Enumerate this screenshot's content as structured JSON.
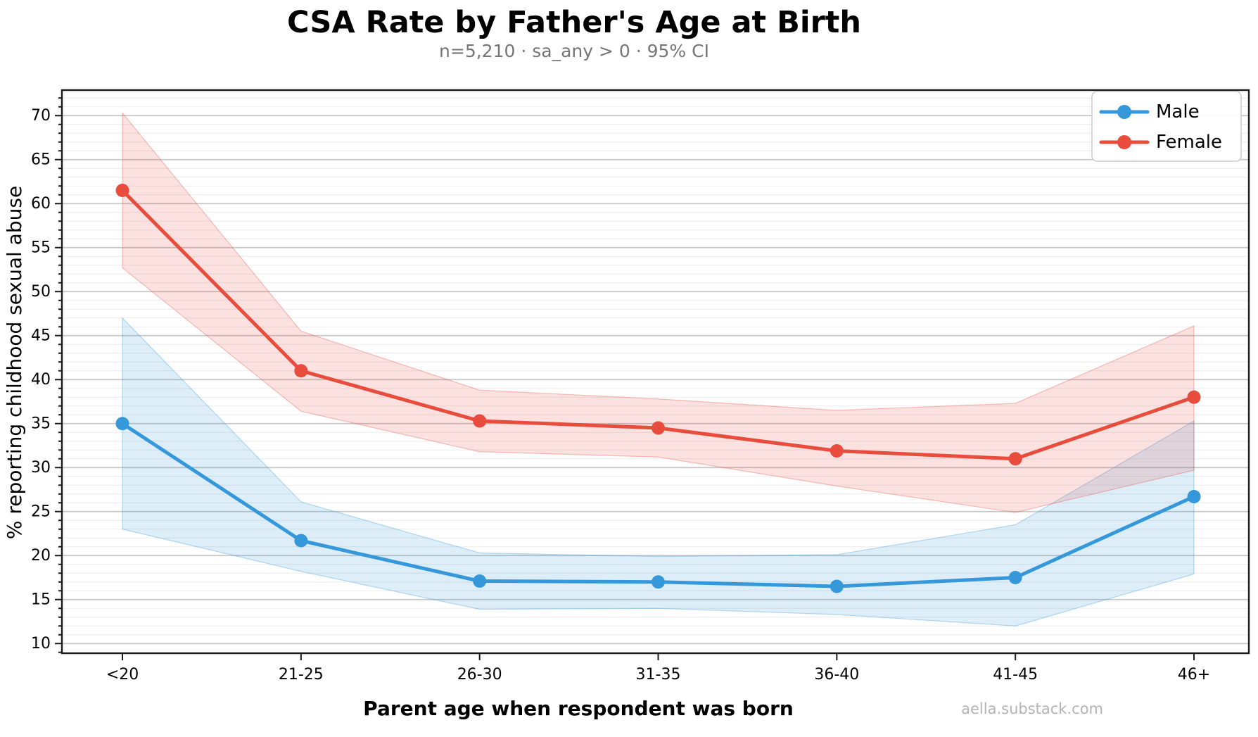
{
  "chart_data": {
    "type": "line",
    "title": "CSA Rate by Father's Age at Birth",
    "subtitle": "n=5,210 · sa_any > 0 · 95% CI",
    "xlabel": "Parent age when respondent was born",
    "ylabel": "% reporting childhood sexual abuse",
    "categories": [
      "<20",
      "21-25",
      "26-30",
      "31-35",
      "36-40",
      "41-45",
      "46+"
    ],
    "series": [
      {
        "name": "Male",
        "color": "#3498db",
        "values": [
          35.0,
          21.7,
          17.1,
          17.0,
          16.5,
          17.5,
          26.7
        ],
        "ci_low": [
          23.0,
          18.2,
          13.9,
          14.0,
          13.3,
          12.0,
          17.9
        ],
        "ci_high": [
          47.0,
          26.1,
          20.3,
          19.9,
          20.1,
          23.5,
          35.3
        ]
      },
      {
        "name": "Female",
        "color": "#e74c3c",
        "values": [
          61.5,
          41.0,
          35.3,
          34.5,
          31.9,
          31.0,
          38.0
        ],
        "ci_low": [
          52.7,
          36.4,
          31.8,
          31.2,
          27.9,
          24.9,
          29.7
        ],
        "ci_high": [
          70.3,
          45.5,
          38.8,
          37.8,
          36.5,
          37.3,
          46.1
        ]
      }
    ],
    "ci_label": "95% CI",
    "sample_size": "n=5,210",
    "yticks": [
      10,
      15,
      20,
      25,
      30,
      35,
      40,
      45,
      50,
      55,
      60,
      65,
      70
    ],
    "ylim": [
      8.9,
      72.9
    ],
    "grid": "horizontal major+minor",
    "legend_position": "upper right",
    "watermark": "aella.substack.com"
  }
}
